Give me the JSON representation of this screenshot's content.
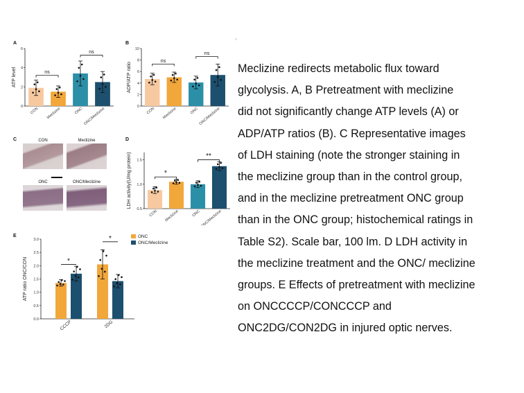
{
  "caption_lines": [
    "Meclizine redirects metabolic flux toward",
    "glycolysis. A, B Pretreatment with meclizine",
    "did not significantly change ATP levels (A) or",
    "ADP/ATP ratios (B). C Representative images",
    "of LDH staining (note the stronger staining in",
    "the meclizine group than in the control group,",
    "and in the meclizine pretreatment ONC group",
    "than in the ONC group; histochemical ratings in",
    "Table S2). Scale bar, 100 lm. D LDH activity in",
    "the meclizine treatment and the ONC/ meclizine",
    "groups. E Effects of pretreatment with meclizine",
    "on ONCCCCP/CONCCCP and",
    "ONC2DG/CON2DG in injured optic nerves."
  ],
  "colors": {
    "con": "#f7c9a0",
    "meclizine": "#f2a73b",
    "onc": "#2c8fa8",
    "onc_meclizine": "#1d4f6e"
  },
  "panel_c": {
    "letter": "C",
    "labels": [
      "CON",
      "Meclizine",
      "ONC",
      "ONC/Meclizine"
    ]
  },
  "chart_data": [
    {
      "panel": "A",
      "type": "bar",
      "ylabel": "ATP level",
      "categories": [
        "CON",
        "Meclizine",
        "ONC",
        "ONC/Meclizine"
      ],
      "values": [
        1.9,
        1.5,
        3.4,
        2.5
      ],
      "errors": [
        0.8,
        0.6,
        1.3,
        1.1
      ],
      "yticks": [
        "0",
        "2",
        "4",
        "6"
      ],
      "ylim": [
        0,
        6
      ],
      "significance": [
        {
          "from": 0,
          "to": 1,
          "label": "ns",
          "y": 3.2
        },
        {
          "from": 2,
          "to": 3,
          "label": "ns",
          "y": 5.3
        }
      ]
    },
    {
      "panel": "B",
      "type": "bar",
      "ylabel": "ADP/ATP ratio",
      "categories": [
        "CON",
        "Meclizine",
        "ONC",
        "ONC/Meclizine"
      ],
      "values": [
        4.7,
        5.0,
        4.1,
        5.4
      ],
      "errors": [
        1.0,
        0.9,
        1.1,
        1.9
      ],
      "yticks": [
        "0",
        "2",
        "4",
        "6",
        "8",
        "10"
      ],
      "ylim": [
        0,
        10
      ],
      "significance": [
        {
          "from": 0,
          "to": 1,
          "label": "ns",
          "y": 7.3
        },
        {
          "from": 2,
          "to": 3,
          "label": "ns",
          "y": 8.6
        }
      ]
    },
    {
      "panel": "D",
      "type": "bar",
      "ylabel": "LDH activity(U/mg protein)",
      "categories": [
        "CON",
        "Meclizine",
        "ONC",
        "ONC/Meclizine"
      ],
      "values": [
        0.88,
        1.05,
        1.0,
        1.37
      ],
      "errors": [
        0.07,
        0.05,
        0.07,
        0.09
      ],
      "yticks": [
        "0.5",
        "1.0",
        "1.5"
      ],
      "ylim": [
        0.5,
        1.65
      ],
      "significance": [
        {
          "from": 0,
          "to": 1,
          "label": "*",
          "y": 1.15
        },
        {
          "from": 2,
          "to": 3,
          "label": "**",
          "y": 1.5
        }
      ]
    },
    {
      "panel": "E",
      "type": "bar",
      "ylabel": "ATP ratio ONC/CON",
      "categories": [
        "CCCP",
        "2DG"
      ],
      "series": [
        {
          "name": "ONC",
          "values": [
            1.35,
            2.05
          ],
          "errors": [
            0.12,
            0.55
          ]
        },
        {
          "name": "ONC/Meclizine",
          "values": [
            1.7,
            1.42
          ],
          "errors": [
            0.28,
            0.25
          ]
        }
      ],
      "yticks": [
        "0.0",
        "0.5",
        "1.0",
        "1.5",
        "2.0",
        "2.5",
        "3.0"
      ],
      "ylim": [
        0,
        3
      ],
      "legend": "top-right",
      "significance": [
        {
          "category": 0,
          "label": "*",
          "y": 2.05
        },
        {
          "category": 1,
          "label": "*",
          "y": 2.9
        }
      ]
    }
  ]
}
